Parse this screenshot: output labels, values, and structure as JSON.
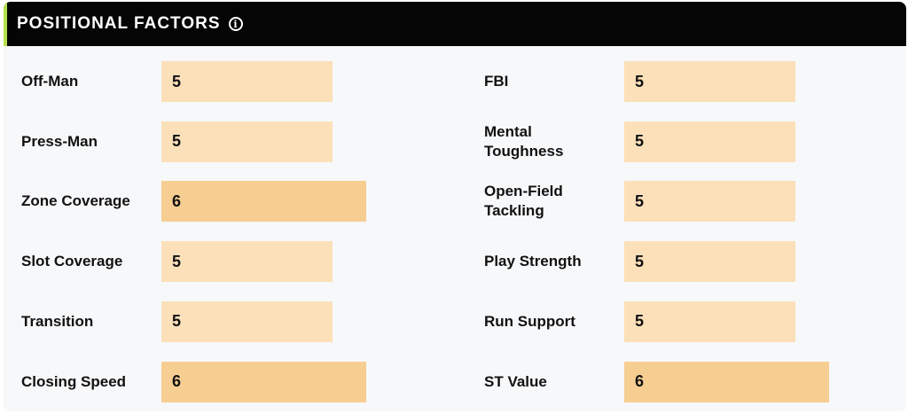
{
  "header": {
    "title": "POSITIONAL FACTORS",
    "info_icon": "info-icon"
  },
  "colors": {
    "header_bg": "#050505",
    "accent": "#b6e04b",
    "bar_light": "#fbe0b9",
    "bar_strong": "#f6ce92"
  },
  "scale_max": 10,
  "left_factors": [
    {
      "label": "Off-Man",
      "value": "5"
    },
    {
      "label": "Press-Man",
      "value": "5"
    },
    {
      "label": "Zone Coverage",
      "value": "6"
    },
    {
      "label": "Slot Coverage",
      "value": "5"
    },
    {
      "label": "Transition",
      "value": "5"
    },
    {
      "label": "Closing Speed",
      "value": "6"
    }
  ],
  "right_factors": [
    {
      "label": "FBI",
      "value": "5"
    },
    {
      "label": "Mental Toughness",
      "value": "5"
    },
    {
      "label": "Open-Field Tackling",
      "value": "5"
    },
    {
      "label": "Play Strength",
      "value": "5"
    },
    {
      "label": "Run Support",
      "value": "5"
    },
    {
      "label": "ST Value",
      "value": "6"
    }
  ]
}
